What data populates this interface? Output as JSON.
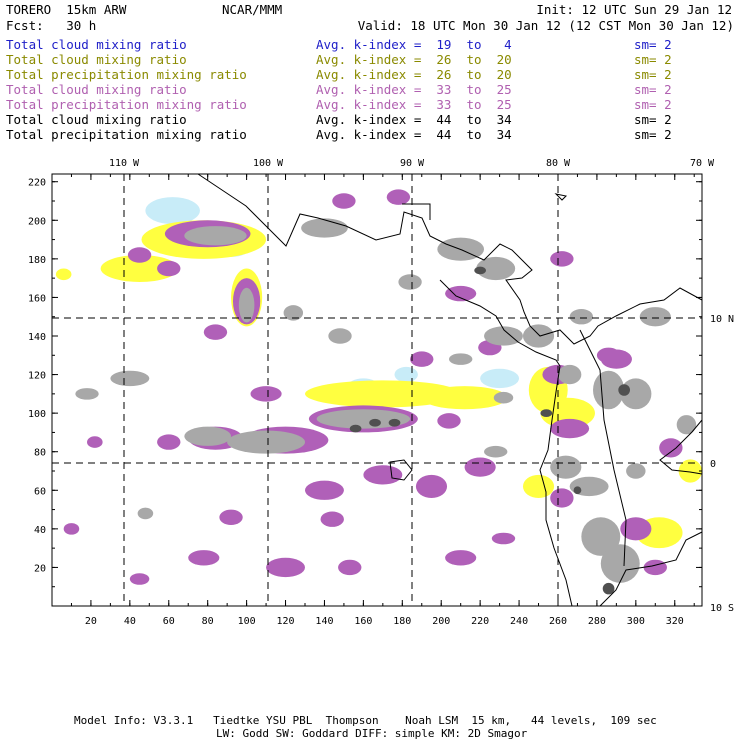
{
  "header": {
    "left1": "TORERO  15km ARW",
    "center1": "NCAR/MMM",
    "right1": "Init: 12 UTC Sun 29 Jan 12",
    "left2": "Fcst:   30 h",
    "right2": "Valid: 18 UTC Mon 30 Jan 12 (12 CST Mon 30 Jan 12)"
  },
  "legend": [
    {
      "field": "Total cloud mixing ratio",
      "kindex": "Avg. k-index =  19  to   4",
      "sm": "sm= 2",
      "color": "#2020c8"
    },
    {
      "field": "Total cloud mixing ratio",
      "kindex": "Avg. k-index =  26  to  20",
      "sm": "sm= 2",
      "color": "#8a8a00"
    },
    {
      "field": "Total precipitation mixing ratio",
      "kindex": "Avg. k-index =  26  to  20",
      "sm": "sm= 2",
      "color": "#8a8a00"
    },
    {
      "field": "Total cloud mixing ratio",
      "kindex": "Avg. k-index =  33  to  25",
      "sm": "sm= 2",
      "color": "#b060b0"
    },
    {
      "field": "Total precipitation mixing ratio",
      "kindex": "Avg. k-index =  33  to  25",
      "sm": "sm= 2",
      "color": "#b060b0"
    },
    {
      "field": "Total cloud mixing ratio",
      "kindex": "Avg. k-index =  44  to  34",
      "sm": "sm= 2",
      "color": "#000000"
    },
    {
      "field": "Total precipitation mixing ratio",
      "kindex": "Avg. k-index =  44  to  34",
      "sm": "sm= 2",
      "color": "#000000"
    }
  ],
  "axes": {
    "lon_labels": [
      "110 W",
      "100 W",
      "90 W",
      "80 W",
      "70 W"
    ],
    "lat_labels": [
      "10 N",
      "0",
      "10 S"
    ],
    "x_ticks": [
      "20",
      "40",
      "60",
      "80",
      "100",
      "120",
      "140",
      "160",
      "180",
      "200",
      "220",
      "240",
      "260",
      "280",
      "300",
      "320"
    ],
    "y_ticks": [
      "220",
      "200",
      "180",
      "160",
      "140",
      "120",
      "100",
      "80",
      "60",
      "40",
      "20"
    ]
  },
  "colors": {
    "cyan": "#c8ecf8",
    "yellow": "#ffff40",
    "magenta": "#b060b8",
    "gray": "#a8a8a8",
    "dark": "#505050"
  },
  "footer": {
    "line1": "Model Info: V3.3.1   Tiedtke YSU PBL  Thompson    Noah LSM  15 km,   44 levels,  109 sec",
    "line2": "LW: Godd SW: Goddard DIFF: simple KM: 2D Smagor"
  }
}
